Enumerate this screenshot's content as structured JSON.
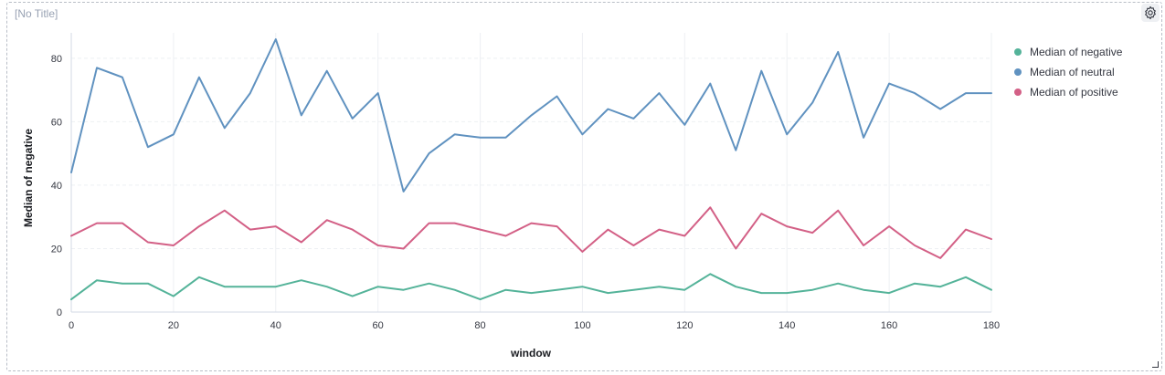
{
  "panel": {
    "title": "[No Title]"
  },
  "chart_data": {
    "type": "line",
    "title": "",
    "xlabel": "window",
    "ylabel": "Median of negative",
    "xlim": [
      0,
      180
    ],
    "ylim": [
      0,
      88
    ],
    "xticks": [
      0,
      20,
      40,
      60,
      80,
      100,
      120,
      140,
      160,
      180
    ],
    "yticks": [
      0,
      20,
      40,
      60,
      80
    ],
    "grid": true,
    "legend_position": "right",
    "x": [
      0,
      5,
      10,
      15,
      20,
      25,
      30,
      35,
      40,
      45,
      50,
      55,
      60,
      65,
      70,
      75,
      80,
      85,
      90,
      95,
      100,
      105,
      110,
      115,
      120,
      125,
      130,
      135,
      140,
      145,
      150,
      155,
      160,
      165,
      170,
      175,
      180
    ],
    "series": [
      {
        "name": "Median of negative",
        "color": "#54b399",
        "values": [
          4,
          10,
          9,
          9,
          5,
          11,
          8,
          8,
          8,
          10,
          8,
          5,
          8,
          7,
          9,
          7,
          4,
          7,
          6,
          7,
          8,
          6,
          7,
          8,
          7,
          12,
          8,
          6,
          6,
          7,
          9,
          7,
          6,
          9,
          8,
          11,
          7
        ]
      },
      {
        "name": "Median of neutral",
        "color": "#6092c0",
        "values": [
          44,
          77,
          74,
          52,
          56,
          74,
          58,
          69,
          86,
          62,
          76,
          61,
          69,
          38,
          50,
          56,
          55,
          55,
          62,
          68,
          56,
          64,
          61,
          69,
          59,
          72,
          51,
          76,
          56,
          66,
          82,
          55,
          72,
          69,
          64,
          69,
          69
        ]
      },
      {
        "name": "Median of positive",
        "color": "#d36086",
        "values": [
          24,
          28,
          28,
          22,
          21,
          27,
          32,
          26,
          27,
          22,
          29,
          26,
          21,
          20,
          28,
          28,
          26,
          24,
          28,
          27,
          19,
          26,
          21,
          26,
          24,
          33,
          20,
          31,
          27,
          25,
          32,
          21,
          27,
          21,
          17,
          26,
          23
        ]
      }
    ]
  }
}
